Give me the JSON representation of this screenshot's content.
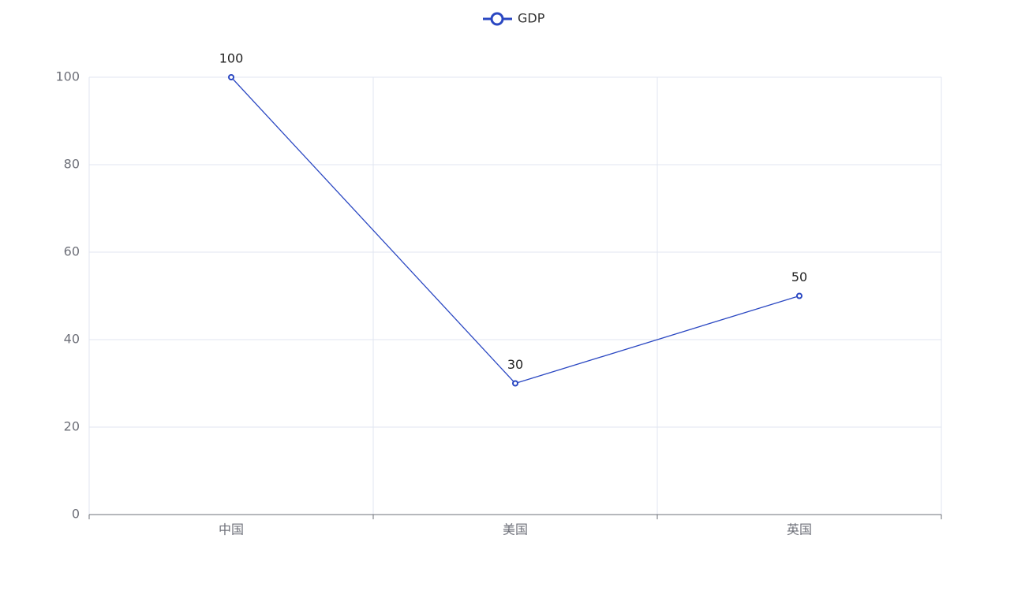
{
  "chart_data": {
    "type": "line",
    "categories": [
      "中国",
      "美国",
      "英国"
    ],
    "series": [
      {
        "name": "GDP",
        "color": "#2a47c2",
        "values": [
          100,
          30,
          50
        ]
      }
    ],
    "ylim": [
      0,
      100
    ],
    "yticks": [
      0,
      20,
      40,
      60,
      80,
      100
    ],
    "grid": true,
    "legend": "top"
  }
}
